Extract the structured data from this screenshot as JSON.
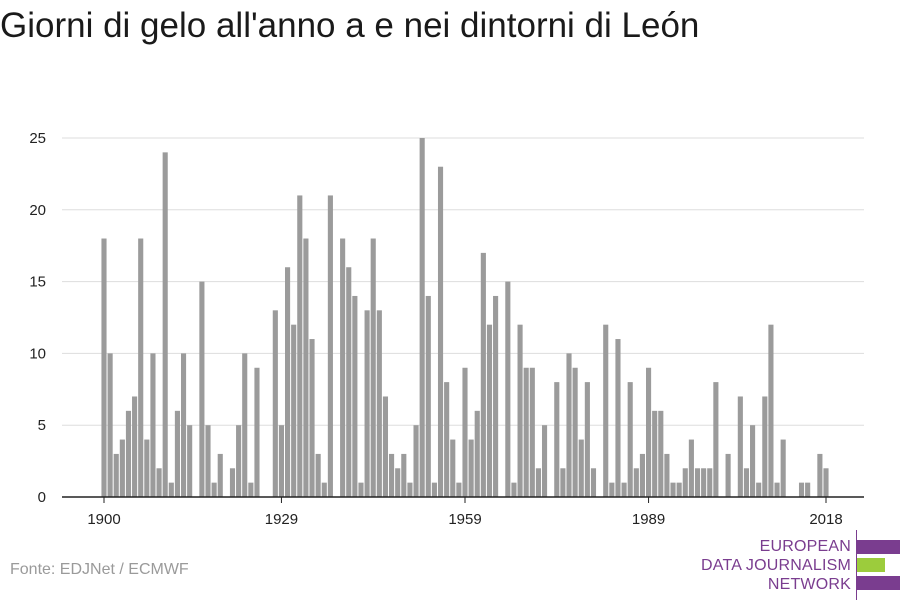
{
  "title": "Giorni di gelo all'anno a e nei dintorni di León",
  "source": "Fonte: EDJNet / ECMWF",
  "logo": {
    "lines": [
      "EUROPEAN",
      "DATA JOURNALISM",
      "NETWORK"
    ],
    "colors": {
      "purple": "#7a3d8f",
      "green": "#9ccc3c"
    }
  },
  "colors": {
    "bar": "#9b9b9b",
    "grid": "#dddddd",
    "axis": "#222222",
    "tick_text": "#222222"
  },
  "chart_data": {
    "type": "bar",
    "title": "Giorni di gelo all'anno a e nei dintorni di León",
    "xlabel": "",
    "ylabel": "",
    "ylim": [
      0,
      25
    ],
    "xlim": [
      1900,
      2018
    ],
    "yticks": [
      0,
      5,
      10,
      15,
      20,
      25
    ],
    "xticks": [
      1900,
      1929,
      1959,
      1989,
      2018
    ],
    "grid": true,
    "years": [
      1900,
      1901,
      1902,
      1903,
      1904,
      1905,
      1906,
      1907,
      1908,
      1909,
      1910,
      1911,
      1912,
      1913,
      1914,
      1915,
      1916,
      1917,
      1918,
      1919,
      1920,
      1921,
      1922,
      1923,
      1924,
      1925,
      1926,
      1927,
      1928,
      1929,
      1930,
      1931,
      1932,
      1933,
      1934,
      1935,
      1936,
      1937,
      1938,
      1939,
      1940,
      1941,
      1942,
      1943,
      1944,
      1945,
      1946,
      1947,
      1948,
      1949,
      1950,
      1951,
      1952,
      1953,
      1954,
      1955,
      1956,
      1957,
      1958,
      1959,
      1960,
      1961,
      1962,
      1963,
      1964,
      1965,
      1966,
      1967,
      1968,
      1969,
      1970,
      1971,
      1972,
      1973,
      1974,
      1975,
      1976,
      1977,
      1978,
      1979,
      1980,
      1981,
      1982,
      1983,
      1984,
      1985,
      1986,
      1987,
      1988,
      1989,
      1990,
      1991,
      1992,
      1993,
      1994,
      1995,
      1996,
      1997,
      1998,
      1999,
      2000,
      2001,
      2002,
      2003,
      2004,
      2005,
      2006,
      2007,
      2008,
      2009,
      2010,
      2011,
      2012,
      2013,
      2014,
      2015,
      2016,
      2017,
      2018
    ],
    "values": [
      18,
      10,
      3,
      4,
      6,
      7,
      18,
      4,
      10,
      2,
      24,
      1,
      6,
      10,
      5,
      0,
      15,
      5,
      1,
      3,
      0,
      2,
      5,
      10,
      1,
      9,
      0,
      0,
      13,
      5,
      16,
      12,
      21,
      18,
      11,
      3,
      1,
      21,
      0,
      18,
      16,
      14,
      1,
      13,
      18,
      13,
      7,
      3,
      2,
      3,
      1,
      5,
      25,
      14,
      1,
      23,
      8,
      4,
      1,
      9,
      4,
      6,
      17,
      12,
      14,
      0,
      15,
      1,
      12,
      9,
      9,
      2,
      5,
      0,
      8,
      2,
      10,
      9,
      4,
      8,
      2,
      0,
      12,
      1,
      11,
      1,
      8,
      2,
      3,
      9,
      6,
      6,
      3,
      1,
      1,
      2,
      4,
      2,
      2,
      2,
      8,
      0,
      3,
      0,
      7,
      2,
      5,
      1,
      7,
      12,
      1,
      4,
      0,
      0,
      1,
      1,
      0,
      3,
      2
    ]
  }
}
